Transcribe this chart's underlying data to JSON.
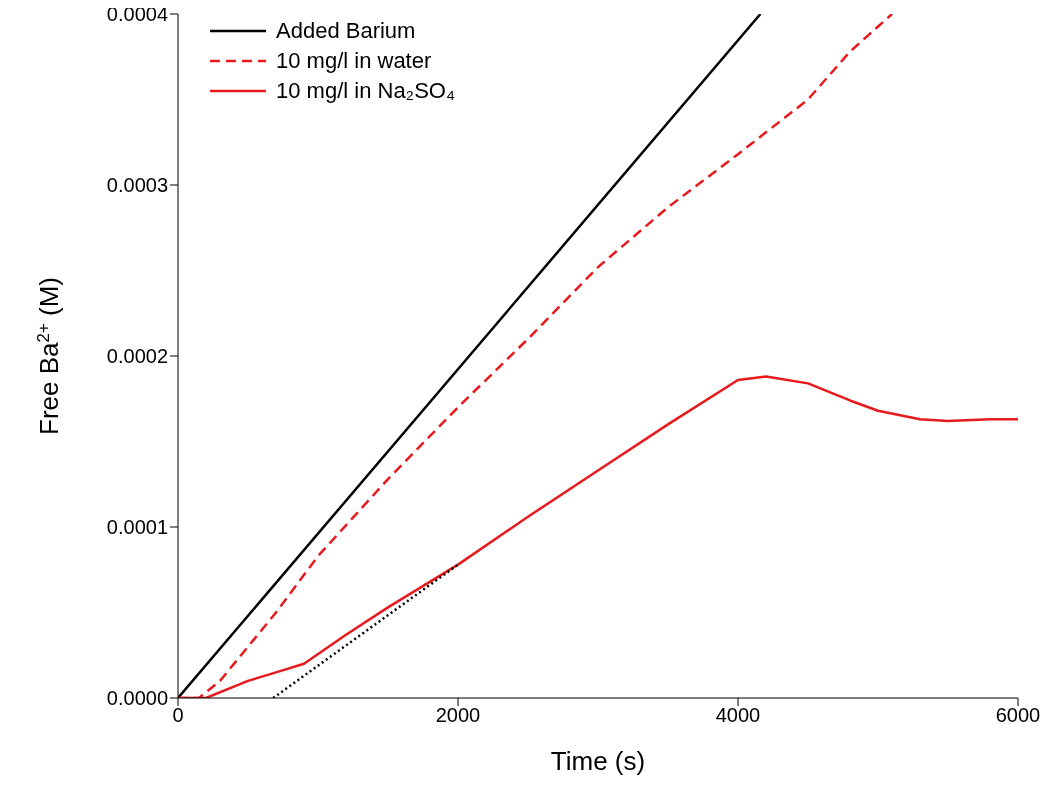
{
  "chart_data": {
    "type": "line",
    "xlabel": "Time (s)",
    "ylabel": "Free Ba$^{2+}$ (M)",
    "xlim": [
      0,
      6000
    ],
    "xticks": [
      0,
      2000,
      4000,
      6000
    ],
    "ylim": [
      0,
      0.0004
    ],
    "yticks": [
      {
        "value": 0,
        "label": "0.0000"
      },
      {
        "value": 0.0001,
        "label": "0.0001"
      },
      {
        "value": 0.0002,
        "label": "0.0002"
      },
      {
        "value": 0.0003,
        "label": "0.0003"
      },
      {
        "value": 0.0004,
        "label": "0.0004"
      }
    ],
    "grid": false,
    "legend": "top left",
    "marker": "none",
    "series": [
      {
        "name": "Added Barium",
        "color": "#000000",
        "line_style": "solid",
        "x": [
          0,
          4160
        ],
        "values": [
          0,
          0.0004
        ]
      },
      {
        "name": "10 mg/l in water",
        "color": "#e8191c",
        "line_style": "dashed",
        "x": [
          0,
          150,
          300,
          500,
          700,
          1000,
          1500,
          2000,
          2500,
          3000,
          3500,
          4000,
          4500,
          4800,
          5100
        ],
        "values": [
          0,
          0,
          1e-05,
          3e-05,
          5e-05,
          8.3e-05,
          0.000128,
          0.00017,
          0.00021,
          0.000252,
          0.000287,
          0.000318,
          0.00035,
          0.000378,
          0.0004
        ]
      },
      {
        "name": "10 mg/l in Na₂SO₄",
        "color": "#e8191c",
        "line_style": "solid",
        "x": [
          0,
          200,
          500,
          700,
          900,
          1200,
          1500,
          2000,
          2500,
          3000,
          3500,
          4000,
          4200,
          4500,
          4800,
          5000,
          5300,
          5500,
          5800,
          6000
        ],
        "values": [
          0,
          0,
          1e-05,
          1.5e-05,
          2e-05,
          3.7e-05,
          5.3e-05,
          7.8e-05,
          0.000106,
          0.000133,
          0.00016,
          0.000186,
          0.000188,
          0.000184,
          0.000174,
          0.000168,
          0.000163,
          0.000162,
          0.000163,
          0.000163
        ]
      },
      {
        "color": "#000000",
        "line_style": "dotted",
        "x": [
          680,
          2000
        ],
        "values": [
          0,
          7.8e-05
        ]
      }
    ]
  }
}
